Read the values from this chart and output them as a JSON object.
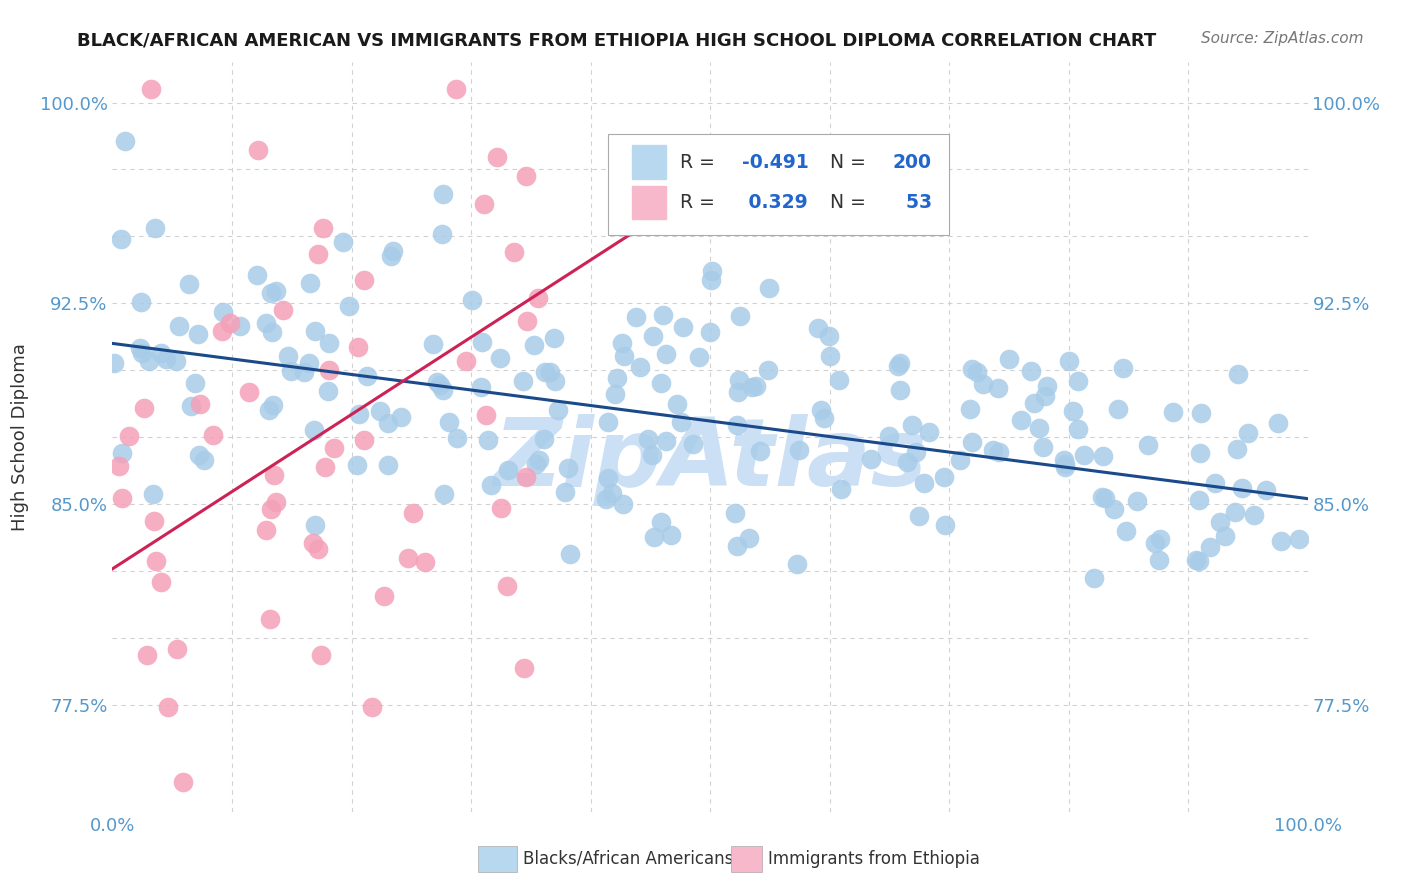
{
  "title": "BLACK/AFRICAN AMERICAN VS IMMIGRANTS FROM ETHIOPIA HIGH SCHOOL DIPLOMA CORRELATION CHART",
  "source": "Source: ZipAtlas.com",
  "ylabel": "High School Diploma",
  "watermark": "ZipAtlas",
  "blue_R": -0.491,
  "blue_N": 200,
  "pink_R": 0.329,
  "pink_N": 53,
  "blue_label": "Blacks/African Americans",
  "pink_label": "Immigrants from Ethiopia",
  "xlim": [
    0.0,
    1.0
  ],
  "ylim": [
    0.735,
    1.015
  ],
  "yticks": [
    0.775,
    0.85,
    0.925,
    1.0
  ],
  "ytick_labels": [
    "77.5%",
    "85.0%",
    "92.5%",
    "100.0%"
  ],
  "xtick_labels": [
    "0.0%",
    "100.0%"
  ],
  "title_color": "#1a1a1a",
  "blue_dot_color": "#a8cce8",
  "pink_dot_color": "#f4a0b8",
  "blue_line_color": "#1a4a8a",
  "pink_line_color": "#cc2255",
  "grid_color": "#cccccc",
  "axis_color": "#5599cc",
  "source_color": "#777777",
  "watermark_color": "#cce0f5",
  "legend_text_color": "#333333",
  "legend_value_color": "#2266cc",
  "background_color": "#ffffff",
  "blue_line_x": [
    0.0,
    1.0
  ],
  "blue_line_y": [
    0.91,
    0.852
  ],
  "pink_line_x": [
    -0.02,
    0.5
  ],
  "pink_line_y": [
    0.82,
    0.97
  ]
}
